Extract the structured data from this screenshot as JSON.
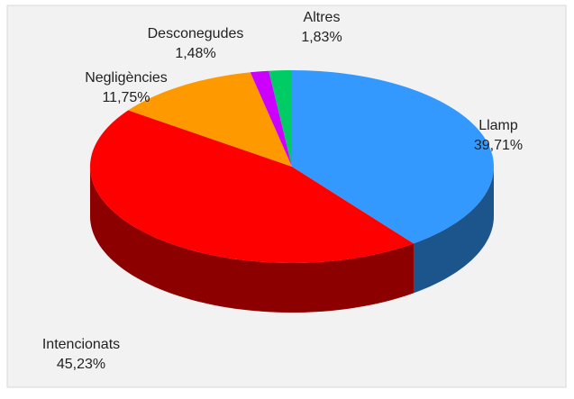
{
  "chart_data": {
    "type": "pie3d",
    "categories": [
      "Llamp",
      "Intencionats",
      "Negligències",
      "Desconegudes",
      "Altres"
    ],
    "values": [
      39.71,
      45.23,
      11.75,
      1.48,
      1.83
    ],
    "value_labels": [
      "39,71%",
      "45,23%",
      "11,75%",
      "1,48%",
      "1,83%"
    ],
    "colors": [
      "#3399ff",
      "#ff0000",
      "#ff9900",
      "#cc00ff",
      "#00cc66"
    ]
  }
}
